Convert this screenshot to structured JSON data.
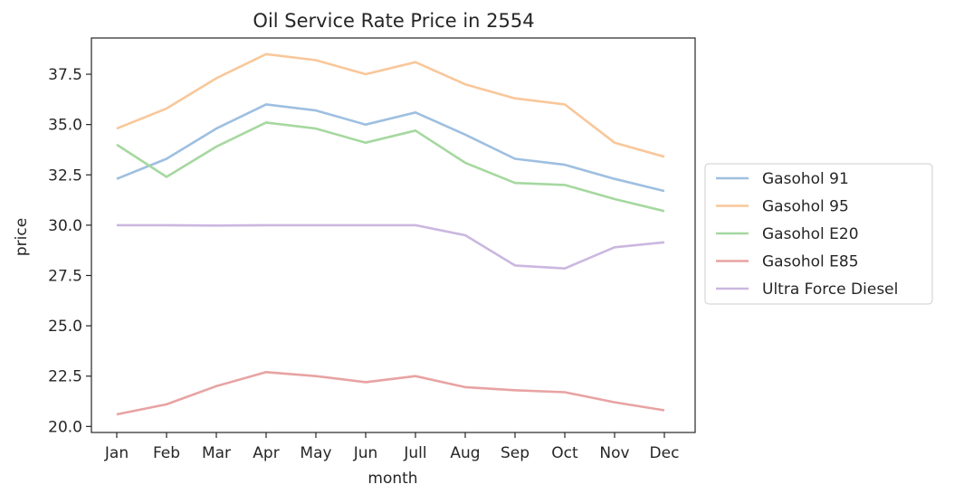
{
  "chart_data": {
    "type": "line",
    "title": "Oil Service Rate Price in 2554",
    "xlabel": "month",
    "ylabel": "price",
    "categories": [
      "Jan",
      "Feb",
      "Mar",
      "Apr",
      "May",
      "Jun",
      "Jull",
      "Aug",
      "Sep",
      "Oct",
      "Nov",
      "Dec"
    ],
    "ylim": [
      19.7,
      39.3
    ],
    "yticks": [
      "20.0",
      "22.5",
      "25.0",
      "27.5",
      "30.0",
      "32.5",
      "35.0",
      "37.5"
    ],
    "grid": false,
    "legend_position": "center-right-outside",
    "series": [
      {
        "name": "Gasohol 91",
        "color": "#9ebfe0",
        "values": [
          32.3,
          33.3,
          34.8,
          36.0,
          35.7,
          35.0,
          35.6,
          34.5,
          33.3,
          33.0,
          32.3,
          31.7
        ]
      },
      {
        "name": "Gasohol 95",
        "color": "#f9c79a",
        "values": [
          34.8,
          35.8,
          37.3,
          38.5,
          38.2,
          37.5,
          38.1,
          37.0,
          36.3,
          36.0,
          34.1,
          33.4
        ]
      },
      {
        "name": "Gasohol E20",
        "color": "#a6d8a0",
        "values": [
          34.0,
          32.4,
          33.9,
          35.1,
          34.8,
          34.1,
          34.7,
          33.1,
          32.1,
          32.0,
          31.3,
          30.7
        ]
      },
      {
        "name": "Gasohol E85",
        "color": "#e8a3a3",
        "values": [
          20.6,
          21.1,
          22.0,
          22.7,
          22.5,
          22.2,
          22.5,
          21.95,
          21.8,
          21.7,
          21.2,
          20.8
        ]
      },
      {
        "name": "Ultra Force Diesel",
        "color": "#cbb7e0",
        "values": [
          30.0,
          30.0,
          29.98,
          30.0,
          30.0,
          30.0,
          30.0,
          29.5,
          28.0,
          27.85,
          28.9,
          29.15
        ]
      }
    ]
  }
}
